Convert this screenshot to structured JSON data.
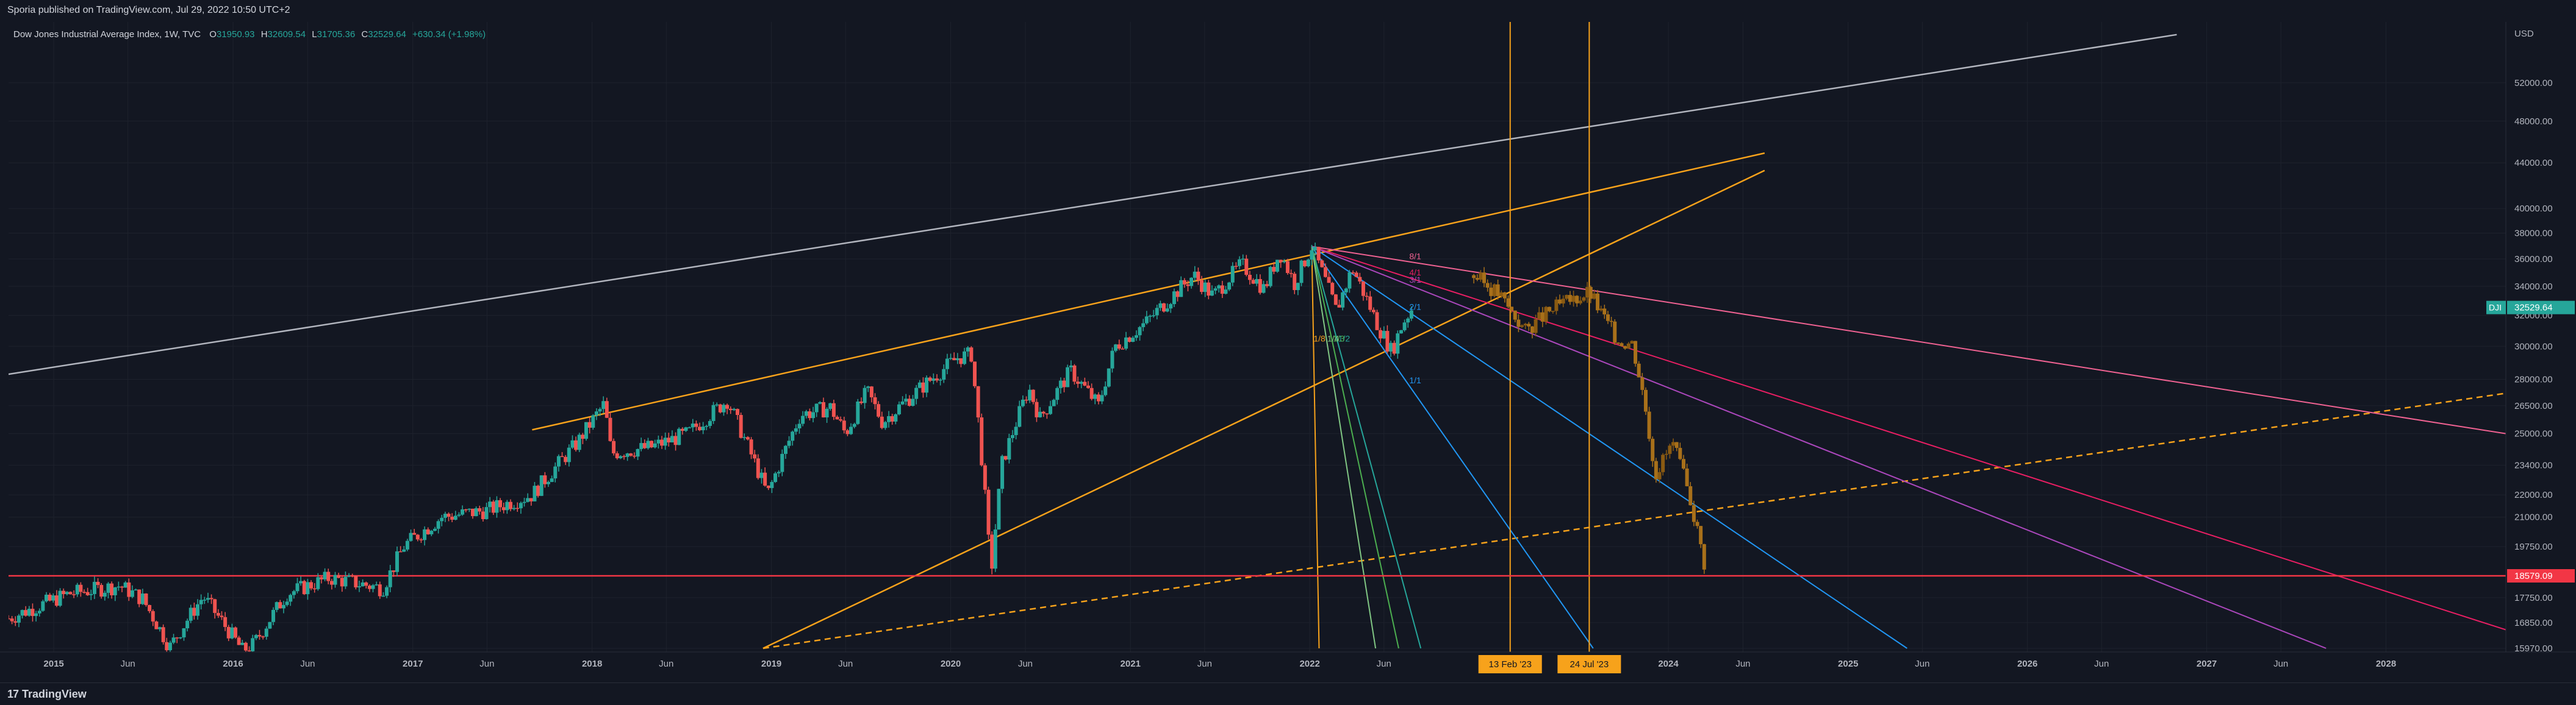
{
  "header": {
    "published": "Sporia published on TradingView.com, Jul 29, 2022 10:50 UTC+2"
  },
  "legend": {
    "symbol": "Dow Jones Industrial Average Index, 1W, TVC",
    "o_label": "O",
    "o": "31950.93",
    "h_label": "H",
    "h": "32609.54",
    "l_label": "L",
    "l": "31705.36",
    "c_label": "C",
    "c": "32529.64",
    "change": "+630.34 (+1.98%)"
  },
  "footer": {
    "logo_mark": "17",
    "logo_text": "TradingView"
  },
  "colors": {
    "background": "#131722",
    "up": "#26a69a",
    "down": "#ef5350",
    "orange": "#f7a21b",
    "red_line": "#f23645",
    "projection": "#8a5a12"
  },
  "chart_data": {
    "type": "candlestick",
    "title": "",
    "yscale": "log",
    "currency": "USD",
    "ylim": [
      15970,
      58000
    ],
    "xlim": [
      "2014-10-01",
      "2028-09-01"
    ],
    "y_ticks": [
      "52000.00",
      "48000.00",
      "44000.00",
      "40000.00",
      "38000.00",
      "36000.00",
      "34000.00",
      "32000.00",
      "30000.00",
      "28000.00",
      "26500.00",
      "25000.00",
      "23400.00",
      "22000.00",
      "21000.00",
      "19750.00",
      "17750.00",
      "16850.00",
      "15970.00"
    ],
    "x_ticks": [
      {
        "label": "2015",
        "date": "2015-01-01",
        "bold": true
      },
      {
        "label": "Jun",
        "date": "2015-06-01",
        "bold": false
      },
      {
        "label": "2016",
        "date": "2016-01-01",
        "bold": true
      },
      {
        "label": "Jun",
        "date": "2016-06-01",
        "bold": false
      },
      {
        "label": "2017",
        "date": "2017-01-01",
        "bold": true
      },
      {
        "label": "Jun",
        "date": "2017-06-01",
        "bold": false
      },
      {
        "label": "2018",
        "date": "2018-01-01",
        "bold": true
      },
      {
        "label": "Jun",
        "date": "2018-06-01",
        "bold": false
      },
      {
        "label": "2019",
        "date": "2019-01-01",
        "bold": true
      },
      {
        "label": "Jun",
        "date": "2019-06-01",
        "bold": false
      },
      {
        "label": "2020",
        "date": "2020-01-01",
        "bold": true
      },
      {
        "label": "Jun",
        "date": "2020-06-01",
        "bold": false
      },
      {
        "label": "2021",
        "date": "2021-01-01",
        "bold": true
      },
      {
        "label": "Jun",
        "date": "2021-06-01",
        "bold": false
      },
      {
        "label": "2022",
        "date": "2022-01-01",
        "bold": true
      },
      {
        "label": "Jun",
        "date": "2022-06-01",
        "bold": false
      },
      {
        "label": "2024",
        "date": "2024-01-01",
        "bold": true
      },
      {
        "label": "Jun",
        "date": "2024-06-01",
        "bold": false
      },
      {
        "label": "2025",
        "date": "2025-01-01",
        "bold": true
      },
      {
        "label": "Jun",
        "date": "2025-06-01",
        "bold": false
      },
      {
        "label": "2026",
        "date": "2026-01-01",
        "bold": true
      },
      {
        "label": "Jun",
        "date": "2026-06-01",
        "bold": false
      },
      {
        "label": "2027",
        "date": "2027-01-01",
        "bold": true
      },
      {
        "label": "Jun",
        "date": "2027-06-01",
        "bold": false
      },
      {
        "label": "2028",
        "date": "2028-01-01",
        "bold": true
      }
    ],
    "price_series": [
      [
        "2014-10-01",
        17000
      ],
      [
        "2015-02-01",
        17900
      ],
      [
        "2015-05-15",
        18200
      ],
      [
        "2015-07-01",
        17700
      ],
      [
        "2015-08-25",
        16000
      ],
      [
        "2015-11-01",
        17800
      ],
      [
        "2016-01-20",
        15900
      ],
      [
        "2016-02-12",
        16100
      ],
      [
        "2016-04-20",
        17900
      ],
      [
        "2016-07-15",
        18500
      ],
      [
        "2016-11-01",
        18100
      ],
      [
        "2016-12-15",
        19800
      ],
      [
        "2017-03-01",
        21000
      ],
      [
        "2017-06-01",
        21300
      ],
      [
        "2017-09-01",
        22000
      ],
      [
        "2017-12-01",
        24500
      ],
      [
        "2018-01-26",
        26600
      ],
      [
        "2018-02-09",
        24000
      ],
      [
        "2018-05-01",
        24300
      ],
      [
        "2018-07-15",
        25000
      ],
      [
        "2018-10-03",
        26800
      ],
      [
        "2018-12-24",
        22000
      ],
      [
        "2019-03-01",
        26000
      ],
      [
        "2019-05-01",
        26400
      ],
      [
        "2019-06-01",
        25000
      ],
      [
        "2019-07-15",
        27300
      ],
      [
        "2019-08-15",
        25600
      ],
      [
        "2019-11-01",
        27500
      ],
      [
        "2020-01-15",
        29300
      ],
      [
        "2020-02-12",
        29500
      ],
      [
        "2020-03-23",
        18600
      ],
      [
        "2020-04-15",
        23500
      ],
      [
        "2020-06-08",
        27500
      ],
      [
        "2020-07-01",
        25800
      ],
      [
        "2020-09-01",
        28500
      ],
      [
        "2020-10-28",
        26500
      ],
      [
        "2020-12-01",
        30000
      ],
      [
        "2021-02-01",
        31500
      ],
      [
        "2021-05-10",
        34800
      ],
      [
        "2021-06-18",
        33300
      ],
      [
        "2021-08-15",
        35600
      ],
      [
        "2021-09-30",
        33800
      ],
      [
        "2021-11-01",
        36500
      ],
      [
        "2021-12-01",
        34200
      ],
      [
        "2022-01-05",
        36950
      ],
      [
        "2022-02-24",
        32300
      ],
      [
        "2022-03-29",
        35300
      ],
      [
        "2022-05-20",
        31300
      ],
      [
        "2022-06-17",
        29650
      ],
      [
        "2022-07-08",
        31400
      ],
      [
        "2022-07-29",
        32529
      ]
    ],
    "projection_series": [
      [
        "2022-12-01",
        34800
      ],
      [
        "2023-01-20",
        33500
      ],
      [
        "2023-03-15",
        31000
      ],
      [
        "2023-05-15",
        32500
      ],
      [
        "2023-07-24",
        33600
      ],
      [
        "2023-08-20",
        32000
      ],
      [
        "2023-09-20",
        30400
      ],
      [
        "2023-10-20",
        30200
      ],
      [
        "2023-11-15",
        26500
      ],
      [
        "2023-12-05",
        23000
      ],
      [
        "2024-01-10",
        24500
      ],
      [
        "2024-02-15",
        21800
      ],
      [
        "2024-03-15",
        19000
      ]
    ],
    "horizontal_lines": [
      {
        "price": 18579.09,
        "label": "18579.09",
        "color": "#f23645"
      }
    ],
    "last_price": {
      "symbol": "DJI",
      "price": 32529.64,
      "label": "32529.64",
      "color": "#26a69a"
    },
    "trend_lines": [
      {
        "from": [
          "2014-10-01",
          28300
        ],
        "to": [
          "2026-11-01",
          57500
        ],
        "color": "#b2b5be",
        "style": "solid"
      },
      {
        "from": [
          "2017-09-01",
          25200
        ],
        "to": [
          "2024-07-15",
          44900
        ],
        "color": "#f7a21b",
        "style": "solid"
      },
      {
        "from": [
          "2018-12-15",
          15970
        ],
        "to": [
          "2024-07-15",
          43300
        ],
        "color": "#f7a21b",
        "style": "solid"
      },
      {
        "from": [
          "2018-12-15",
          15970
        ],
        "to": [
          "2028-09-01",
          27200
        ],
        "color": "#f7a21b",
        "style": "dashed"
      }
    ],
    "fan": {
      "origin": [
        "2022-01-05",
        36950
      ],
      "rays": [
        {
          "label": "8/1",
          "to": [
            "2028-09-01",
            25000
          ],
          "color": "#f06292"
        },
        {
          "label": "4/1",
          "to": [
            "2028-09-01",
            16600
          ],
          "color": "#e91e63"
        },
        {
          "label": "3/1",
          "to": [
            "2027-09-01",
            15970
          ],
          "color": "#ab47bc"
        },
        {
          "label": "2/1",
          "to": [
            "2025-05-01",
            15970
          ],
          "color": "#2196f3"
        },
        {
          "label": "1/1",
          "to": [
            "2023-08-01",
            15970
          ],
          "color": "#2196f3"
        },
        {
          "label": "1/2",
          "to": [
            "2022-08-15",
            15970
          ],
          "color": "#26a69a"
        },
        {
          "label": "1/3",
          "to": [
            "2022-07-01",
            15970
          ],
          "color": "#4caf50"
        },
        {
          "label": "1/4",
          "to": [
            "2022-05-15",
            15970
          ],
          "color": "#81c784"
        },
        {
          "label": "1/8",
          "to": [
            "2022-01-20",
            15970
          ],
          "color": "#f7a21b"
        }
      ]
    },
    "time_markers": [
      {
        "date": "2023-02-13",
        "label": "13 Feb '23",
        "color": "#f7a21b"
      },
      {
        "date": "2023-07-24",
        "label": "24 Jul '23",
        "color": "#f7a21b"
      }
    ]
  }
}
